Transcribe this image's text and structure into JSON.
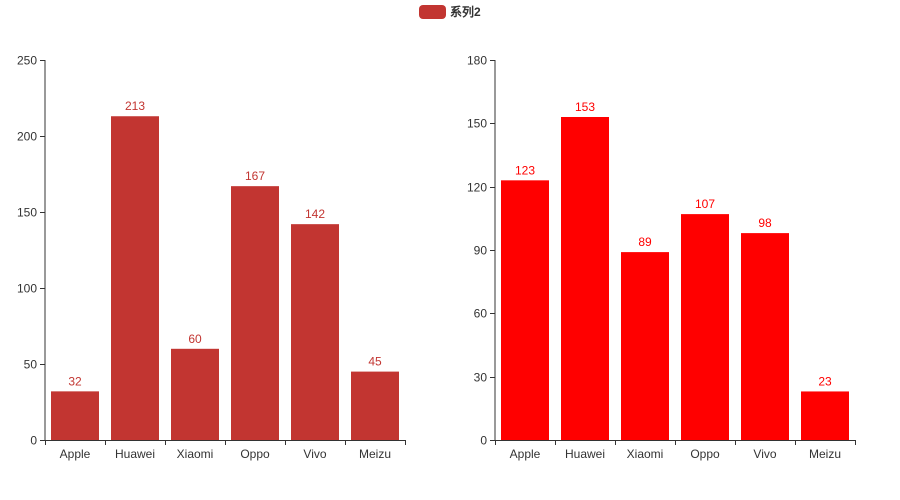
{
  "legend": {
    "label": "系列2",
    "color": "#c23531"
  },
  "chart_data": [
    {
      "type": "bar",
      "categories": [
        "Apple",
        "Huawei",
        "Xiaomi",
        "Oppo",
        "Vivo",
        "Meizu"
      ],
      "values": [
        32,
        213,
        60,
        167,
        142,
        45
      ],
      "ylim": [
        0,
        250
      ],
      "yticks": [
        0,
        50,
        100,
        150,
        200,
        250
      ],
      "color": "#c23531",
      "label_color": "#c23531",
      "grid": false
    },
    {
      "type": "bar",
      "categories": [
        "Apple",
        "Huawei",
        "Xiaomi",
        "Oppo",
        "Vivo",
        "Meizu"
      ],
      "values": [
        123,
        153,
        89,
        107,
        98,
        23
      ],
      "ylim": [
        0,
        180
      ],
      "yticks": [
        0,
        30,
        60,
        90,
        120,
        150,
        180
      ],
      "color": "#ff0000",
      "label_color": "#ff0000",
      "grid": false
    }
  ]
}
